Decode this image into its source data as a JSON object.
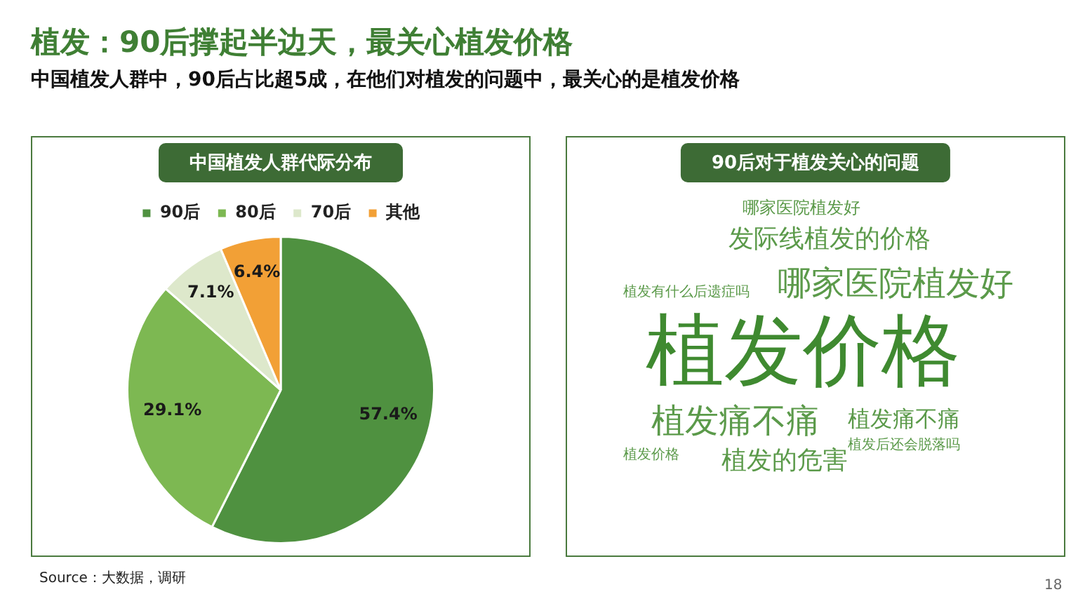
{
  "chart_data": [
    {
      "type": "pie",
      "title": "植发：90后撑起半边天，最关心植发价格",
      "subtitle": "中国植发人群中，90后占比超5成，在他们对植发的问题中，最关心的是植发价格",
      "categories": [
        "90后",
        "80后",
        "70后",
        "其他"
      ],
      "values": [
        57.4,
        29.1,
        7.1,
        6.4
      ],
      "value_labels": [
        "57.4%",
        "29.1%",
        "7.1%",
        "6.4%"
      ],
      "colors": [
        "#4f9140",
        "#7db852",
        "#dde8cb",
        "#f2a036"
      ],
      "legend": "top",
      "annotations": [
        "中国植发人群代际分布",
        "Source：大数据，调研",
        "18"
      ]
    },
    {
      "type": "other",
      "title": "90后对于植发关心的问题",
      "annotations": [
        "植发价格",
        "哪家医院植发好",
        "植发痛不痛",
        "发际线植发的价格",
        "植发的危害",
        "哪家医院植发好",
        "植发痛不痛",
        "植发后还会脱落吗",
        "植发有什么后遗症吗",
        "植发价格"
      ]
    }
  ]
}
